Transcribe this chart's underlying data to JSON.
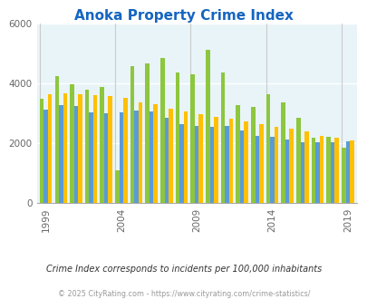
{
  "title": "Anoka Property Crime Index",
  "title_color": "#1565c0",
  "years": [
    1999,
    2000,
    2001,
    2002,
    2003,
    2004,
    2005,
    2006,
    2007,
    2008,
    2009,
    2010,
    2011,
    2012,
    2013,
    2014,
    2015,
    2016,
    2017,
    2018,
    2019
  ],
  "anoka": [
    3500,
    4250,
    3970,
    3800,
    3900,
    1100,
    4600,
    4680,
    4850,
    4380,
    4330,
    5120,
    4370,
    3270,
    3210,
    3640,
    3380,
    2870,
    2200,
    2230,
    1870
  ],
  "minnesota": [
    3130,
    3280,
    3250,
    3050,
    3020,
    3050,
    3090,
    3080,
    2850,
    2640,
    2600,
    2560,
    2590,
    2440,
    2250,
    2210,
    2120,
    2030,
    2040,
    2050,
    2070
  ],
  "national": [
    3650,
    3680,
    3640,
    3620,
    3580,
    3540,
    3390,
    3330,
    3160,
    3060,
    2980,
    2900,
    2820,
    2740,
    2650,
    2570,
    2490,
    2420,
    2240,
    2190,
    2100
  ],
  "anoka_color": "#8dc63f",
  "minnesota_color": "#5b9bd5",
  "national_color": "#ffc000",
  "bg_color": "#ddeef5",
  "plot_bg": "#e8f4f8",
  "ylim": [
    0,
    6000
  ],
  "xlabel_years": [
    1999,
    2004,
    2009,
    2014,
    2019
  ],
  "subtitle": "Crime Index corresponds to incidents per 100,000 inhabitants",
  "footer": "© 2025 CityRating.com - https://www.cityrating.com/crime-statistics/",
  "bar_width": 0.27
}
